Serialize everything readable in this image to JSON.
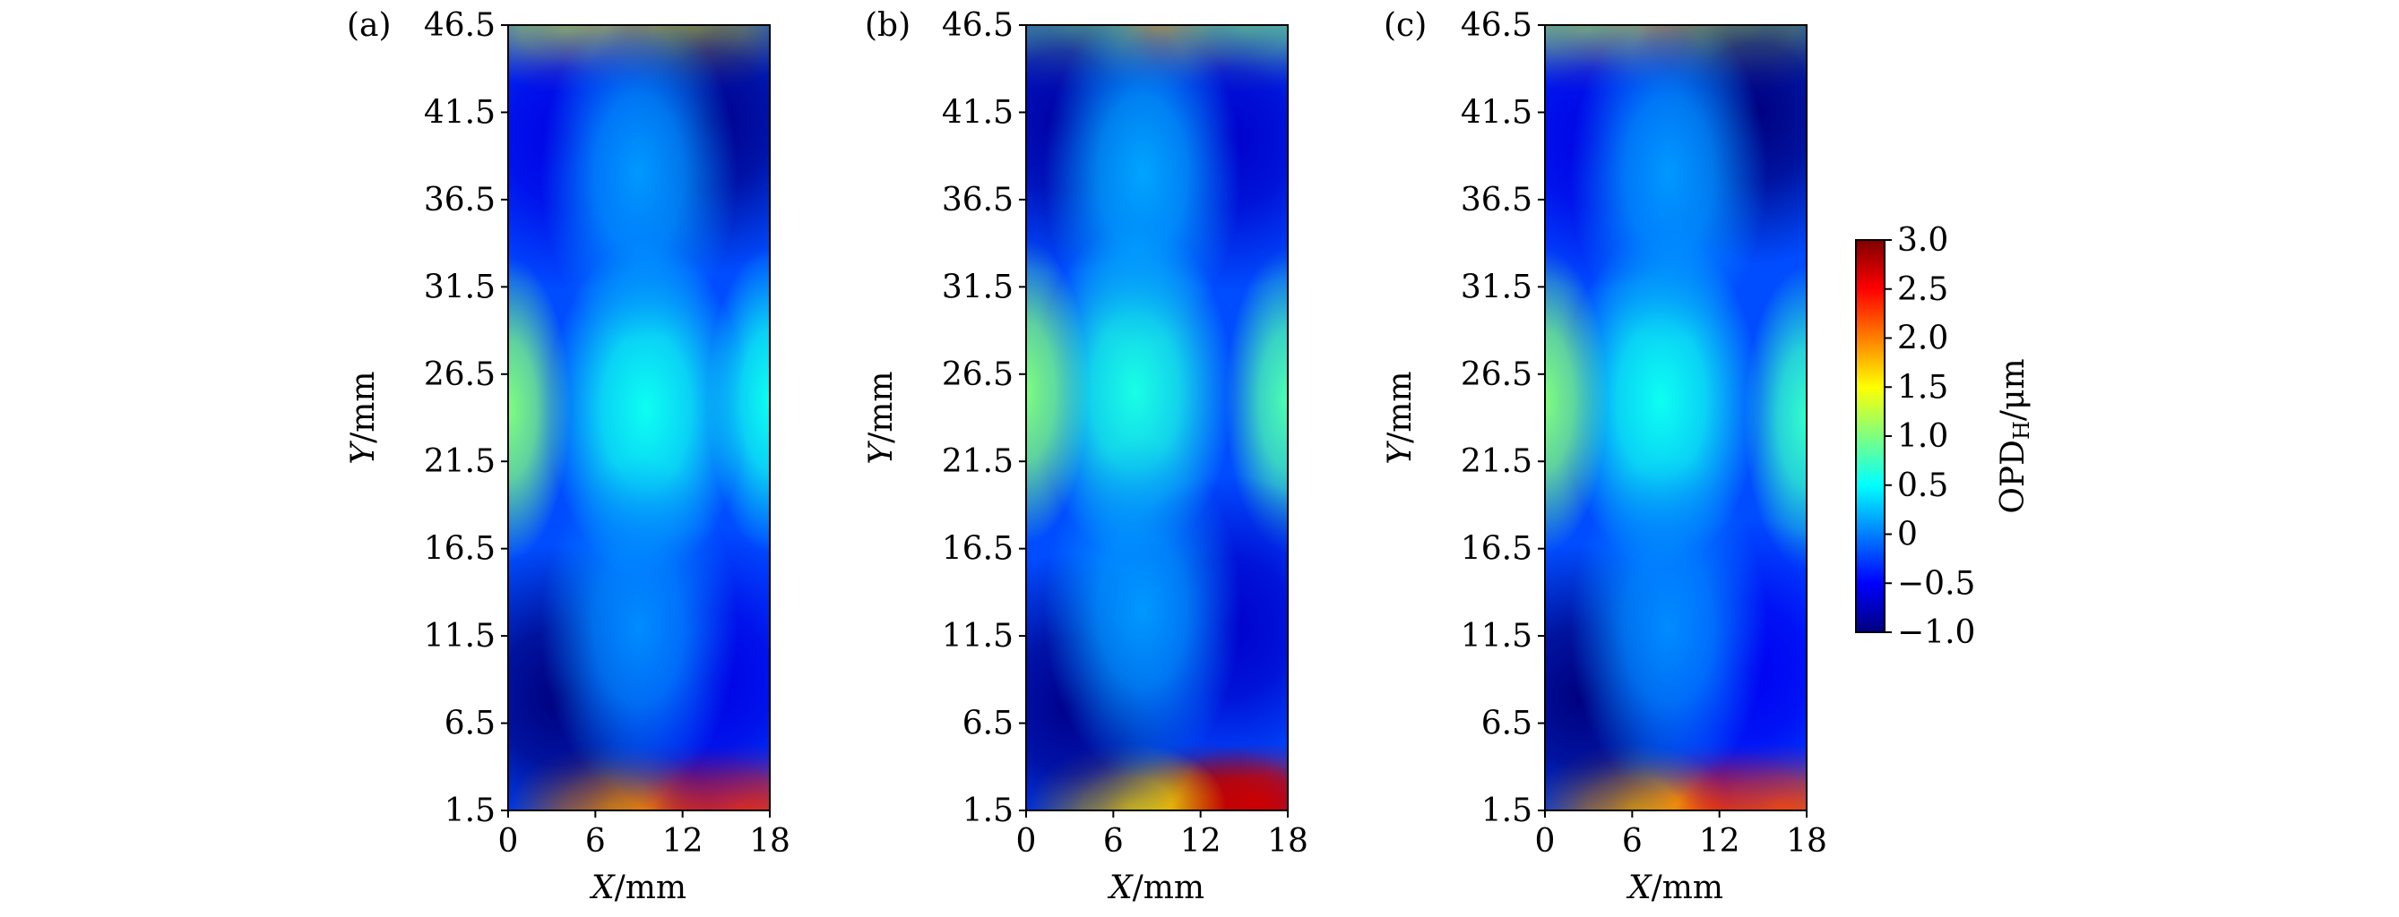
{
  "chart_data": {
    "type": "heatmap",
    "panels": [
      {
        "label": "(a)",
        "xlabel": "X/mm",
        "ylabel": "Y/mm",
        "xlim": [
          0,
          18
        ],
        "ylim": [
          1.5,
          46.5
        ],
        "xticks": [
          "0",
          "6",
          "12",
          "18"
        ],
        "yticks": [
          "1.5",
          "6.5",
          "11.5",
          "16.5",
          "21.5",
          "26.5",
          "31.5",
          "36.5",
          "41.5",
          "46.5"
        ],
        "features": [
          {
            "x": 12,
            "y": 1.8,
            "value": 2.8
          },
          {
            "x": 7,
            "y": 1.8,
            "value": 1.9
          },
          {
            "x": 16,
            "y": 1.8,
            "value": 2.3
          },
          {
            "x": 9,
            "y": 46.3,
            "value": 2.5
          },
          {
            "x": 13,
            "y": 46.2,
            "value": 1.4
          },
          {
            "x": 4,
            "y": 46.2,
            "value": 1.3
          },
          {
            "x": 9.5,
            "y": 24.5,
            "value": 0.55
          },
          {
            "x": 0,
            "y": 24.5,
            "value": 1.0
          },
          {
            "x": 18,
            "y": 25,
            "value": 0.55
          },
          {
            "x": 3.5,
            "y": 8,
            "value": -1.0
          },
          {
            "x": 14,
            "y": 41,
            "value": -0.95
          },
          {
            "x": 4,
            "y": 40,
            "value": -0.6
          },
          {
            "x": 14,
            "y": 9,
            "value": -0.6
          },
          {
            "x": 9,
            "y": 38,
            "value": 0.1
          },
          {
            "x": 9,
            "y": 12,
            "value": 0.05
          }
        ]
      },
      {
        "label": "(b)",
        "xlabel": "X/mm",
        "ylabel": "Y/mm",
        "xlim": [
          0,
          18
        ],
        "ylim": [
          1.5,
          46.5
        ],
        "xticks": [
          "0",
          "6",
          "12",
          "18"
        ],
        "yticks": [
          "1.5",
          "6.5",
          "11.5",
          "16.5",
          "21.5",
          "26.5",
          "31.5",
          "36.5",
          "41.5",
          "46.5"
        ],
        "features": [
          {
            "x": 12.5,
            "y": 1.8,
            "value": 2.9
          },
          {
            "x": 16,
            "y": 1.8,
            "value": 2.7
          },
          {
            "x": 7,
            "y": 1.8,
            "value": 1.6
          },
          {
            "x": 9,
            "y": 46.3,
            "value": 2.0
          },
          {
            "x": 3,
            "y": 46.2,
            "value": 1.0
          },
          {
            "x": 15,
            "y": 46.2,
            "value": 1.0
          },
          {
            "x": 7.5,
            "y": 25.5,
            "value": 0.6
          },
          {
            "x": 0,
            "y": 25.5,
            "value": 1.0
          },
          {
            "x": 18,
            "y": 25,
            "value": 0.8
          },
          {
            "x": 3,
            "y": 7.5,
            "value": -0.95
          },
          {
            "x": 2.5,
            "y": 41,
            "value": -0.85
          },
          {
            "x": 14,
            "y": 40,
            "value": -0.7
          },
          {
            "x": 14,
            "y": 12,
            "value": -0.7
          },
          {
            "x": 8,
            "y": 38,
            "value": 0.15
          },
          {
            "x": 8,
            "y": 13,
            "value": 0.1
          }
        ]
      },
      {
        "label": "(c)",
        "xlabel": "X/mm",
        "ylabel": "Y/mm",
        "xlim": [
          0,
          18
        ],
        "ylim": [
          1.5,
          46.5
        ],
        "xticks": [
          "0",
          "6",
          "12",
          "18"
        ],
        "yticks": [
          "1.5",
          "6.5",
          "11.5",
          "16.5",
          "21.5",
          "26.5",
          "31.5",
          "36.5",
          "41.5",
          "46.5"
        ],
        "features": [
          {
            "x": 11.5,
            "y": 1.8,
            "value": 2.6
          },
          {
            "x": 6,
            "y": 1.8,
            "value": 1.8
          },
          {
            "x": 16,
            "y": 1.8,
            "value": 2.2
          },
          {
            "x": 8,
            "y": 46.3,
            "value": 2.2
          },
          {
            "x": 14,
            "y": 46.2,
            "value": 1.2
          },
          {
            "x": 3,
            "y": 46.2,
            "value": 1.2
          },
          {
            "x": 8,
            "y": 25,
            "value": 0.55
          },
          {
            "x": 0,
            "y": 25,
            "value": 1.0
          },
          {
            "x": 18,
            "y": 24,
            "value": 0.7
          },
          {
            "x": 2.5,
            "y": 8,
            "value": -1.0
          },
          {
            "x": 14.5,
            "y": 41.5,
            "value": -1.0
          },
          {
            "x": 3.5,
            "y": 40,
            "value": -0.6
          },
          {
            "x": 14,
            "y": 9.5,
            "value": -0.55
          },
          {
            "x": 8.5,
            "y": 38,
            "value": 0.1
          },
          {
            "x": 8.5,
            "y": 12,
            "value": 0.05
          }
        ]
      }
    ],
    "colorbar": {
      "label_main": "OPD",
      "label_sub": "H",
      "label_unit": "/μm",
      "range": [
        -1.0,
        3.0
      ],
      "ticks": [
        "3.0",
        "2.5",
        "2.0",
        "1.5",
        "1.0",
        "0.5",
        "0",
        "−0.5",
        "−1.0"
      ],
      "colormap": "jet",
      "colors": [
        "#00007f",
        "#0000ff",
        "#007fff",
        "#00ffff",
        "#7fff7f",
        "#ffff00",
        "#ff7f00",
        "#ff0000",
        "#7f0000"
      ]
    }
  }
}
